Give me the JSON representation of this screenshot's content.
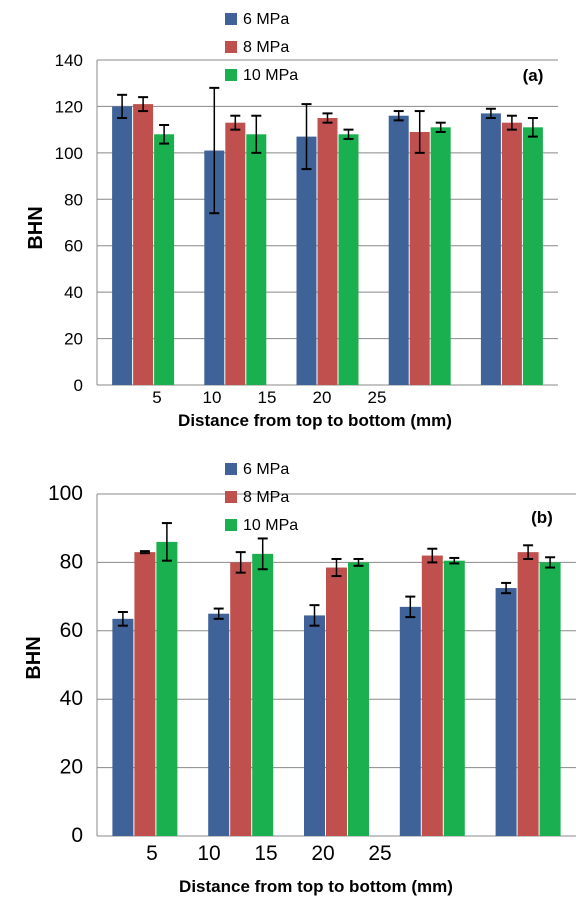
{
  "chart_data": [
    {
      "type": "bar",
      "panel_label": "(a)",
      "ylabel": "BHN",
      "xlabel": "Distance from top to bottom (mm)",
      "x_tick_labels": [
        "5",
        "10",
        "15",
        "20",
        "25"
      ],
      "ylim": [
        0,
        140
      ],
      "yticks": [
        0,
        20,
        40,
        60,
        80,
        100,
        120,
        140
      ],
      "grid": true,
      "legend_position": "top-left",
      "series": [
        {
          "name": "6  MPa",
          "color": "#3f6398",
          "values": [
            120,
            101,
            107,
            116,
            117
          ],
          "errors": [
            5,
            27,
            14,
            2,
            2
          ]
        },
        {
          "name": "8 MPa",
          "color": "#c0504d",
          "values": [
            121,
            113,
            115,
            109,
            113
          ],
          "errors": [
            3,
            3,
            2,
            9,
            3
          ]
        },
        {
          "name": "10 MPa",
          "color": "#1ab04f",
          "values": [
            108,
            108,
            108,
            111,
            111
          ],
          "errors": [
            4,
            8,
            2,
            2,
            4
          ]
        }
      ]
    },
    {
      "type": "bar",
      "panel_label": "(b)",
      "ylabel": "BHN",
      "xlabel": "Distance from top to bottom (mm)",
      "x_tick_labels": [
        "5",
        "10",
        "15",
        "20",
        "25"
      ],
      "ylim": [
        0,
        100
      ],
      "yticks": [
        0,
        20,
        40,
        60,
        80,
        100
      ],
      "grid": true,
      "legend_position": "top-left",
      "series": [
        {
          "name": "6  MPa",
          "color": "#3f6398",
          "values": [
            63.5,
            65,
            64.5,
            67,
            72.5
          ],
          "errors": [
            2,
            1.5,
            3,
            3,
            1.5
          ]
        },
        {
          "name": "8 MPa",
          "color": "#c0504d",
          "values": [
            83,
            80,
            78.5,
            82,
            83
          ],
          "errors": [
            0.3,
            3,
            2.5,
            2,
            2
          ]
        },
        {
          "name": "10 MPa",
          "color": "#1ab04f",
          "values": [
            86,
            82.5,
            80,
            80.5,
            80
          ],
          "errors": [
            5.5,
            4.5,
            1,
            0.8,
            1.5
          ]
        }
      ]
    }
  ]
}
